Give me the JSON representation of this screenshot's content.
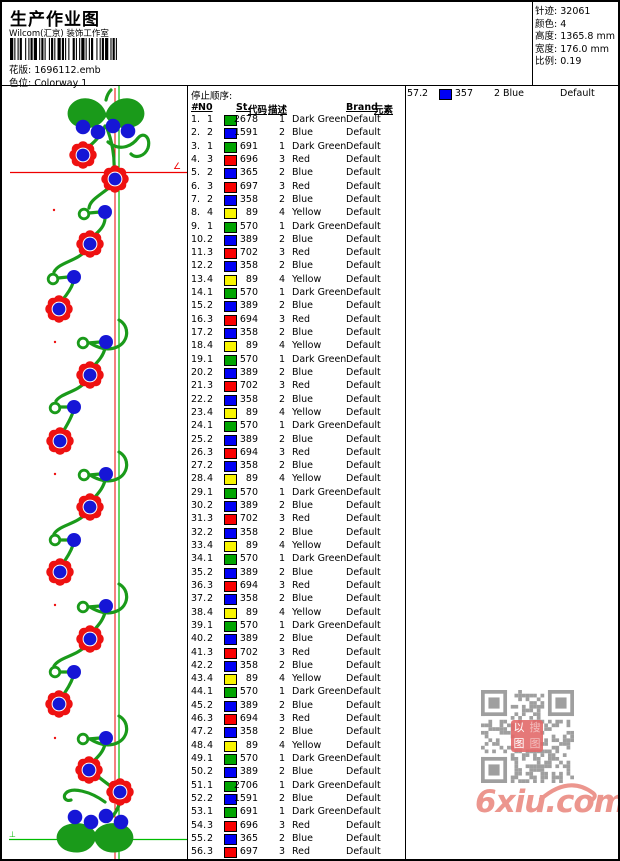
{
  "header": {
    "title": "生产作业图",
    "company": "Wilcom(汇京) 装饰工作室",
    "design_label": "花版:",
    "design_file": "1696112.emb",
    "colorway_label": "色位:",
    "colorway_value": "Colorway 1",
    "info": [
      {
        "label": "针迹:",
        "value": "32061"
      },
      {
        "label": "颜色:",
        "value": "4"
      },
      {
        "label": "高度:",
        "value": "1365.8 mm"
      },
      {
        "label": "宽度:",
        "value": "176.0 mm"
      },
      {
        "label": "比例:",
        "value": "0.19"
      }
    ]
  },
  "table": {
    "section_title": "停止顺序:",
    "columns": [
      "#",
      "N0",
      "St.",
      "代码",
      "描述",
      "Brand",
      "元素"
    ],
    "rows": [
      [
        "1.",
        "1",
        "green",
        "2678",
        "1",
        "Dark Green",
        "Default"
      ],
      [
        "2.",
        "2",
        "blue",
        "1591",
        "2",
        "Blue",
        "Default"
      ],
      [
        "3.",
        "1",
        "green",
        "691",
        "1",
        "Dark Green",
        "Default"
      ],
      [
        "4.",
        "3",
        "red",
        "696",
        "3",
        "Red",
        "Default"
      ],
      [
        "5.",
        "2",
        "blue",
        "365",
        "2",
        "Blue",
        "Default"
      ],
      [
        "6.",
        "3",
        "red",
        "697",
        "3",
        "Red",
        "Default"
      ],
      [
        "7.",
        "2",
        "blue",
        "358",
        "2",
        "Blue",
        "Default"
      ],
      [
        "8.",
        "4",
        "yellow",
        "89",
        "4",
        "Yellow",
        "Default"
      ],
      [
        "9.",
        "1",
        "green",
        "570",
        "1",
        "Dark Green",
        "Default"
      ],
      [
        "10.",
        "2",
        "blue",
        "389",
        "2",
        "Blue",
        "Default"
      ],
      [
        "11.",
        "3",
        "red",
        "702",
        "3",
        "Red",
        "Default"
      ],
      [
        "12.",
        "2",
        "blue",
        "358",
        "2",
        "Blue",
        "Default"
      ],
      [
        "13.",
        "4",
        "yellow",
        "89",
        "4",
        "Yellow",
        "Default"
      ],
      [
        "14.",
        "1",
        "green",
        "570",
        "1",
        "Dark Green",
        "Default"
      ],
      [
        "15.",
        "2",
        "blue",
        "389",
        "2",
        "Blue",
        "Default"
      ],
      [
        "16.",
        "3",
        "red",
        "694",
        "3",
        "Red",
        "Default"
      ],
      [
        "17.",
        "2",
        "blue",
        "358",
        "2",
        "Blue",
        "Default"
      ],
      [
        "18.",
        "4",
        "yellow",
        "89",
        "4",
        "Yellow",
        "Default"
      ],
      [
        "19.",
        "1",
        "green",
        "570",
        "1",
        "Dark Green",
        "Default"
      ],
      [
        "20.",
        "2",
        "blue",
        "389",
        "2",
        "Blue",
        "Default"
      ],
      [
        "21.",
        "3",
        "red",
        "702",
        "3",
        "Red",
        "Default"
      ],
      [
        "22.",
        "2",
        "blue",
        "358",
        "2",
        "Blue",
        "Default"
      ],
      [
        "23.",
        "4",
        "yellow",
        "89",
        "4",
        "Yellow",
        "Default"
      ],
      [
        "24.",
        "1",
        "green",
        "570",
        "1",
        "Dark Green",
        "Default"
      ],
      [
        "25.",
        "2",
        "blue",
        "389",
        "2",
        "Blue",
        "Default"
      ],
      [
        "26.",
        "3",
        "red",
        "694",
        "3",
        "Red",
        "Default"
      ],
      [
        "27.",
        "2",
        "blue",
        "358",
        "2",
        "Blue",
        "Default"
      ],
      [
        "28.",
        "4",
        "yellow",
        "89",
        "4",
        "Yellow",
        "Default"
      ],
      [
        "29.",
        "1",
        "green",
        "570",
        "1",
        "Dark Green",
        "Default"
      ],
      [
        "30.",
        "2",
        "blue",
        "389",
        "2",
        "Blue",
        "Default"
      ],
      [
        "31.",
        "3",
        "red",
        "702",
        "3",
        "Red",
        "Default"
      ],
      [
        "32.",
        "2",
        "blue",
        "358",
        "2",
        "Blue",
        "Default"
      ],
      [
        "33.",
        "4",
        "yellow",
        "89",
        "4",
        "Yellow",
        "Default"
      ],
      [
        "34.",
        "1",
        "green",
        "570",
        "1",
        "Dark Green",
        "Default"
      ],
      [
        "35.",
        "2",
        "blue",
        "389",
        "2",
        "Blue",
        "Default"
      ],
      [
        "36.",
        "3",
        "red",
        "694",
        "3",
        "Red",
        "Default"
      ],
      [
        "37.",
        "2",
        "blue",
        "358",
        "2",
        "Blue",
        "Default"
      ],
      [
        "38.",
        "4",
        "yellow",
        "89",
        "4",
        "Yellow",
        "Default"
      ],
      [
        "39.",
        "1",
        "green",
        "570",
        "1",
        "Dark Green",
        "Default"
      ],
      [
        "40.",
        "2",
        "blue",
        "389",
        "2",
        "Blue",
        "Default"
      ],
      [
        "41.",
        "3",
        "red",
        "702",
        "3",
        "Red",
        "Default"
      ],
      [
        "42.",
        "2",
        "blue",
        "358",
        "2",
        "Blue",
        "Default"
      ],
      [
        "43.",
        "4",
        "yellow",
        "89",
        "4",
        "Yellow",
        "Default"
      ],
      [
        "44.",
        "1",
        "green",
        "570",
        "1",
        "Dark Green",
        "Default"
      ],
      [
        "45.",
        "2",
        "blue",
        "389",
        "2",
        "Blue",
        "Default"
      ],
      [
        "46.",
        "3",
        "red",
        "694",
        "3",
        "Red",
        "Default"
      ],
      [
        "47.",
        "2",
        "blue",
        "358",
        "2",
        "Blue",
        "Default"
      ],
      [
        "48.",
        "4",
        "yellow",
        "89",
        "4",
        "Yellow",
        "Default"
      ],
      [
        "49.",
        "1",
        "green",
        "570",
        "1",
        "Dark Green",
        "Default"
      ],
      [
        "50.",
        "2",
        "blue",
        "389",
        "2",
        "Blue",
        "Default"
      ],
      [
        "51.",
        "1",
        "green",
        "2706",
        "1",
        "Dark Green",
        "Default"
      ],
      [
        "52.",
        "2",
        "blue",
        "1591",
        "2",
        "Blue",
        "Default"
      ],
      [
        "53.",
        "1",
        "green",
        "691",
        "1",
        "Dark Green",
        "Default"
      ],
      [
        "54.",
        "3",
        "red",
        "696",
        "3",
        "Red",
        "Default"
      ],
      [
        "55.",
        "2",
        "blue",
        "365",
        "2",
        "Blue",
        "Default"
      ],
      [
        "56.",
        "3",
        "red",
        "697",
        "3",
        "Red",
        "Default"
      ]
    ],
    "overflow_row": [
      "57.",
      "2",
      "blue",
      "357",
      "2",
      "Blue",
      "Default"
    ]
  },
  "design": {
    "angle_marker": "∠",
    "origin_marker": "⊥"
  },
  "colors": {
    "swatch": {
      "green": "#00a400",
      "blue": "#0000f4",
      "red": "#f80000",
      "yellow": "#f8f400"
    },
    "vine_green": "#1a9a1a",
    "flower_red": "#ee1111",
    "dot_blue": "#1616d6",
    "guide_red": "#ee0000",
    "guide_green": "#00bb00",
    "watermark_pink": "#e87f76",
    "qr_gray": "#8a8a8a"
  },
  "watermark": {
    "site": "6xiu.com",
    "stamp_text": "以图搜图"
  }
}
